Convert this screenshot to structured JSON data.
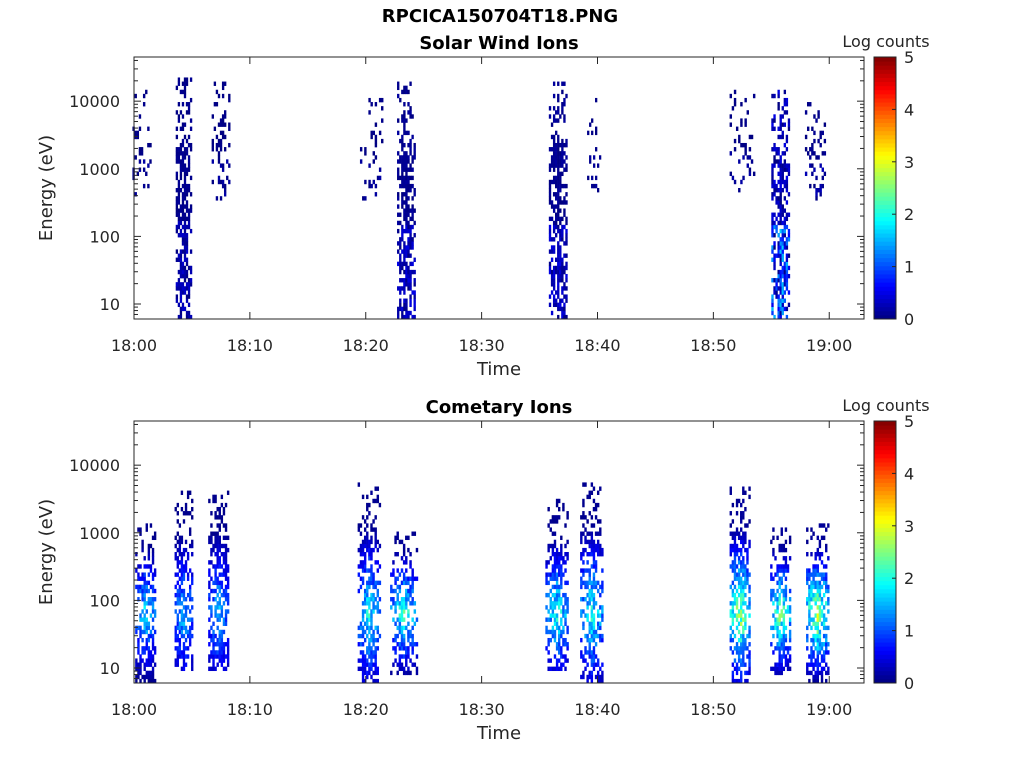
{
  "figure_title": "RPCICA150704T18.PNG",
  "chart_data": [
    {
      "type": "heatmap",
      "title": "Solar Wind Ions",
      "xlabel": "Time",
      "ylabel": "Energy (eV)",
      "x_range": [
        "18:00",
        "19:03"
      ],
      "x_ticks": [
        "18:00",
        "18:10",
        "18:20",
        "18:30",
        "18:40",
        "18:50",
        "19:00"
      ],
      "y_scale": "log",
      "y_range": [
        6,
        45000
      ],
      "y_ticks": [
        "10",
        "100",
        "1000",
        "10000"
      ],
      "colorbar": {
        "label": "Log counts",
        "range": [
          0,
          5
        ],
        "ticks": [
          "0",
          "1",
          "2",
          "3",
          "4",
          "5"
        ],
        "colormap": "jet"
      },
      "bursts": [
        {
          "time": "18:00.5",
          "width_min": 2.0,
          "e_min": 300,
          "e_max": 13000,
          "peak_log_counts": 0.2,
          "density": 0.25
        },
        {
          "time": "18:04.3",
          "width_min": 1.4,
          "e_min": 6,
          "e_max": 20000,
          "peak_log_counts": 0.4,
          "density": 0.75
        },
        {
          "time": "18:07.5",
          "width_min": 1.6,
          "e_min": 300,
          "e_max": 17000,
          "peak_log_counts": 0.2,
          "density": 0.3
        },
        {
          "time": "18:20.5",
          "width_min": 2.0,
          "e_min": 300,
          "e_max": 10000,
          "peak_log_counts": 0.2,
          "density": 0.2
        },
        {
          "time": "18:23.5",
          "width_min": 1.6,
          "e_min": 6,
          "e_max": 17000,
          "peak_log_counts": 0.5,
          "density": 0.75
        },
        {
          "time": "18:36.6",
          "width_min": 1.6,
          "e_min": 6,
          "e_max": 18000,
          "peak_log_counts": 0.5,
          "density": 0.75
        },
        {
          "time": "18:39.7",
          "width_min": 1.2,
          "e_min": 400,
          "e_max": 10000,
          "peak_log_counts": 0.2,
          "density": 0.25
        },
        {
          "time": "18:52.5",
          "width_min": 2.2,
          "e_min": 400,
          "e_max": 15000,
          "peak_log_counts": 0.2,
          "density": 0.25
        },
        {
          "time": "18:55.8",
          "width_min": 1.6,
          "e_min": 6,
          "e_max": 13000,
          "peak_log_counts": 1.7,
          "density": 0.75
        },
        {
          "time": "18:58.8",
          "width_min": 1.8,
          "e_min": 300,
          "e_max": 10000,
          "peak_log_counts": 0.3,
          "density": 0.3
        }
      ]
    },
    {
      "type": "heatmap",
      "title": "Cometary Ions",
      "xlabel": "Time",
      "ylabel": "Energy (eV)",
      "x_range": [
        "18:00",
        "19:03"
      ],
      "x_ticks": [
        "18:00",
        "18:10",
        "18:20",
        "18:30",
        "18:40",
        "18:50",
        "19:00"
      ],
      "y_scale": "log",
      "y_range": [
        6,
        45000
      ],
      "y_ticks": [
        "10",
        "100",
        "1000",
        "10000"
      ],
      "colorbar": {
        "label": "Log counts",
        "range": [
          0,
          5
        ],
        "ticks": [
          "0",
          "1",
          "2",
          "3",
          "4",
          "5"
        ],
        "colormap": "jet"
      },
      "bursts": [
        {
          "time": "18:01.0",
          "width_min": 1.8,
          "e_min": 6,
          "e_max": 1200,
          "peak_log_counts": 2.0,
          "density": 0.7
        },
        {
          "time": "18:04.3",
          "width_min": 1.6,
          "e_min": 8,
          "e_max": 4000,
          "peak_log_counts": 1.8,
          "density": 0.7
        },
        {
          "time": "18:07.3",
          "width_min": 1.8,
          "e_min": 8,
          "e_max": 4500,
          "peak_log_counts": 1.8,
          "density": 0.7
        },
        {
          "time": "18:20.3",
          "width_min": 2.0,
          "e_min": 6,
          "e_max": 5000,
          "peak_log_counts": 2.2,
          "density": 0.7
        },
        {
          "time": "18:23.3",
          "width_min": 2.4,
          "e_min": 7,
          "e_max": 1000,
          "peak_log_counts": 2.4,
          "density": 0.7
        },
        {
          "time": "18:36.5",
          "width_min": 2.0,
          "e_min": 8,
          "e_max": 3000,
          "peak_log_counts": 2.3,
          "density": 0.7
        },
        {
          "time": "18:39.5",
          "width_min": 2.0,
          "e_min": 6,
          "e_max": 5000,
          "peak_log_counts": 2.3,
          "density": 0.7
        },
        {
          "time": "18:52.3",
          "width_min": 1.8,
          "e_min": 6,
          "e_max": 5000,
          "peak_log_counts": 3.0,
          "density": 0.75
        },
        {
          "time": "18:55.8",
          "width_min": 1.8,
          "e_min": 7,
          "e_max": 1200,
          "peak_log_counts": 2.8,
          "density": 0.75
        },
        {
          "time": "18:59.0",
          "width_min": 2.0,
          "e_min": 6,
          "e_max": 1200,
          "peak_log_counts": 3.2,
          "density": 0.75
        }
      ]
    }
  ]
}
